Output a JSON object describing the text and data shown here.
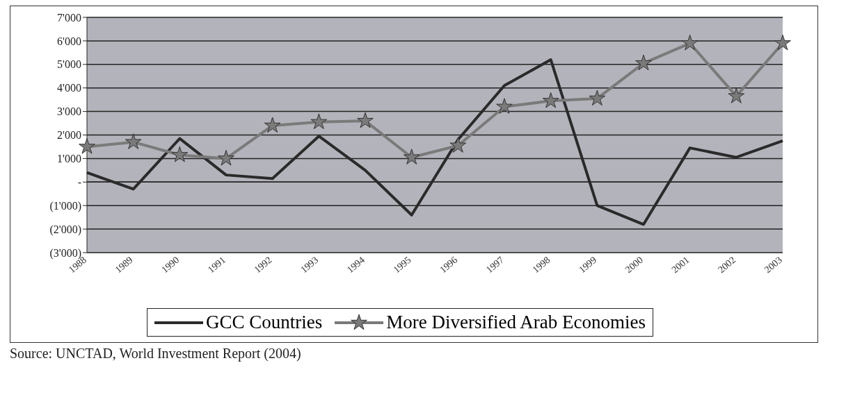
{
  "chart_data": {
    "type": "line",
    "categories": [
      "1988",
      "1989",
      "1990",
      "1991",
      "1992",
      "1993",
      "1994",
      "1995",
      "1996",
      "1997",
      "1998",
      "1999",
      "2000",
      "2001",
      "2002",
      "2003"
    ],
    "series": [
      {
        "name": "GCC Countries",
        "color": "#2a2a2a",
        "marker": "none",
        "values": [
          400,
          -300,
          1850,
          300,
          150,
          1950,
          500,
          -1400,
          1800,
          4100,
          5200,
          -1000,
          -1800,
          1450,
          1050,
          1750
        ]
      },
      {
        "name": "More Diversified Arab Economies",
        "color": "#7a7a7a",
        "marker": "star",
        "values": [
          1500,
          1700,
          1150,
          1000,
          2400,
          2550,
          2600,
          1050,
          1550,
          3200,
          3450,
          3550,
          5050,
          5900,
          3650,
          5900
        ]
      }
    ],
    "ylim": [
      -3000,
      7000
    ],
    "yticks": [
      {
        "value": -3000,
        "label": "(3'000)"
      },
      {
        "value": -2000,
        "label": "(2'000)"
      },
      {
        "value": -1000,
        "label": "(1'000)"
      },
      {
        "value": 0,
        "label": "-"
      },
      {
        "value": 1000,
        "label": "1'000"
      },
      {
        "value": 2000,
        "label": "2'000"
      },
      {
        "value": 3000,
        "label": "3'000"
      },
      {
        "value": 4000,
        "label": "4'000"
      },
      {
        "value": 5000,
        "label": "5'000"
      },
      {
        "value": 6000,
        "label": "6'000"
      },
      {
        "value": 7000,
        "label": "7'000"
      }
    ],
    "grid": "y",
    "legend": "bottom",
    "annotations": [
      "Source: UNCTAD, World Investment Report (2004)"
    ]
  }
}
